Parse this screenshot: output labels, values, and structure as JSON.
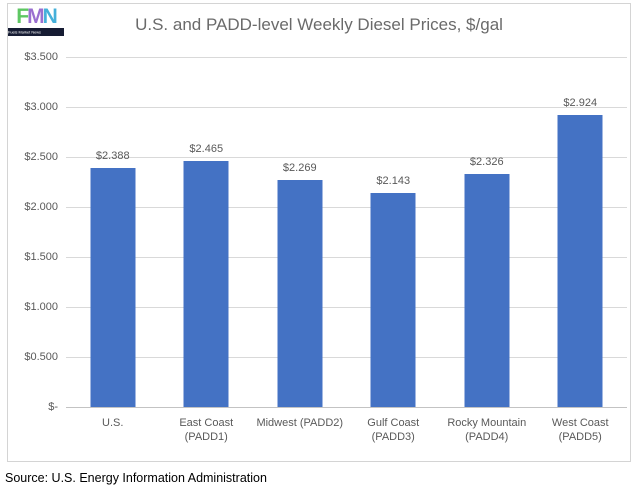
{
  "logo": {
    "letters": [
      {
        "char": "F",
        "color": "#5ec763"
      },
      {
        "char": "M",
        "color": "#9a6fd0"
      },
      {
        "char": "N",
        "color": "#45b0da"
      }
    ],
    "tagline": "Fuels Market News",
    "bar_color": "#161c33"
  },
  "chart_data": {
    "type": "bar",
    "title": "U.S. and PADD-level Weekly Diesel Prices, $/gal",
    "categories": [
      "U.S.",
      "East Coast\n(PADD1)",
      "Midwest (PADD2)",
      "Gulf Coast\n(PADD3)",
      "Rocky Mountain\n(PADD4)",
      "West Coast\n(PADD5)"
    ],
    "values": [
      2.388,
      2.465,
      2.269,
      2.143,
      2.326,
      2.924
    ],
    "data_labels": [
      "$2.388",
      "$2.465",
      "$2.269",
      "$2.143",
      "$2.326",
      "$2.924"
    ],
    "xlabel": "",
    "ylabel": "",
    "ylim": [
      0,
      3.5
    ],
    "yticks": [
      {
        "label": "$3.500",
        "value": 3.5
      },
      {
        "label": "$3.000",
        "value": 3.0
      },
      {
        "label": "$2.500",
        "value": 2.5
      },
      {
        "label": "$2.000",
        "value": 2.0
      },
      {
        "label": "$1.500",
        "value": 1.5
      },
      {
        "label": "$1.000",
        "value": 1.0
      },
      {
        "label": "$0.500",
        "value": 0.5
      },
      {
        "label": "$-",
        "value": 0
      }
    ],
    "grid": true,
    "legend": "none",
    "bar_color": "#4472c4",
    "text_color": "#595959"
  },
  "source": "Source: U.S. Energy Information Administration"
}
